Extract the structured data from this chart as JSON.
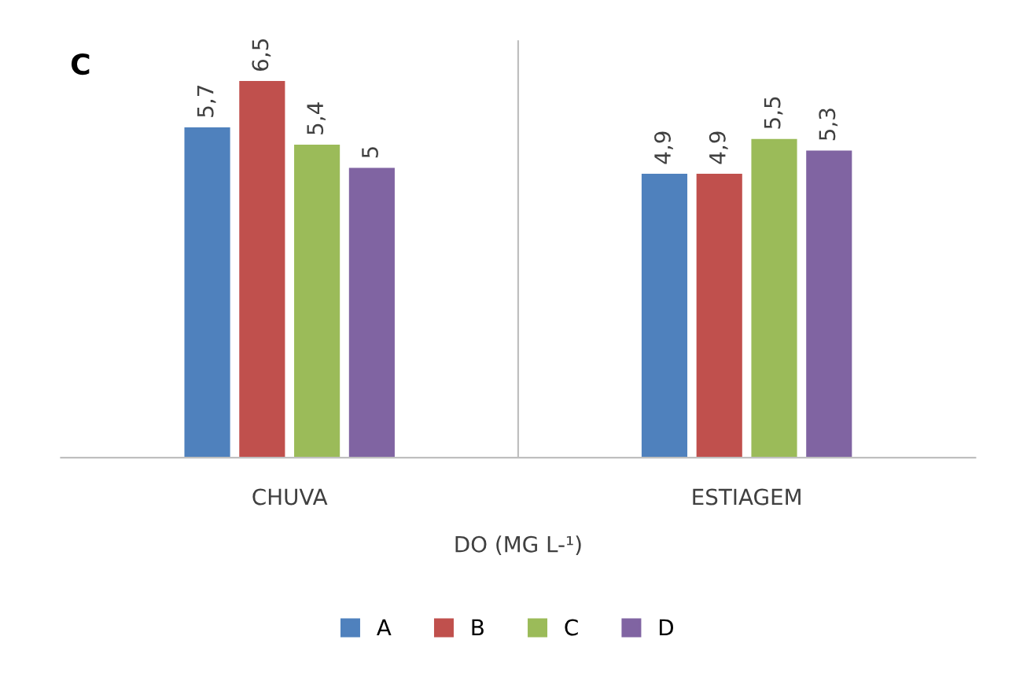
{
  "chart_data": {
    "type": "bar",
    "xlabel": "DO (MG L-¹)",
    "annotations": [
      "C"
    ],
    "categories": [
      "CHUVA",
      "ESTIAGEM"
    ],
    "series": [
      {
        "name": "A",
        "color": "#4f81bd",
        "values": [
          5.7,
          4.9
        ],
        "value_labels": [
          "5,7",
          "4,9"
        ]
      },
      {
        "name": "B",
        "color": "#c0504d",
        "values": [
          6.5,
          4.9
        ],
        "value_labels": [
          "6,5",
          "4,9"
        ]
      },
      {
        "name": "C",
        "color": "#9bbb59",
        "values": [
          5.4,
          5.5
        ],
        "value_labels": [
          "5,4",
          "5,5"
        ]
      },
      {
        "name": "D",
        "color": "#8064a2",
        "values": [
          5,
          5.3
        ],
        "value_labels": [
          "5",
          "5,3"
        ]
      }
    ],
    "ylim": [
      0,
      7.2
    ],
    "tick_labels": "x",
    "grid": false,
    "legend": "bottom"
  }
}
